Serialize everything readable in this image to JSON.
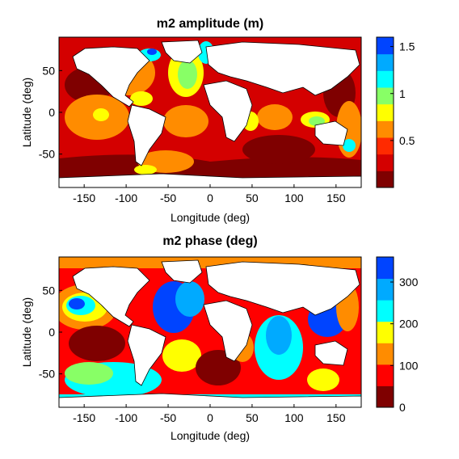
{
  "chart_data": [
    {
      "type": "heatmap",
      "title": "m2 amplitude (m)",
      "xlabel": "Longitude (deg)",
      "ylabel": "Latitude (deg)",
      "xlim": [
        -180,
        180
      ],
      "ylim": [
        -90,
        90
      ],
      "xticks": [
        -150,
        -100,
        -50,
        0,
        50,
        100,
        150
      ],
      "yticks": [
        50,
        0,
        -50
      ],
      "colorbar": {
        "range": [
          0,
          1.6
        ],
        "ticks": [
          "1.5",
          "1",
          "0.5"
        ],
        "tick_values": [
          1.5,
          1.0,
          0.5
        ],
        "colors": [
          "#7f0000",
          "#d40000",
          "#ff2a00",
          "#ff8c00",
          "#ffff00",
          "#88ff66",
          "#00ffff",
          "#00aaff",
          "#0044ff"
        ]
      }
    },
    {
      "type": "heatmap",
      "title": "m2 phase (deg)",
      "xlabel": "Longitude (deg)",
      "ylabel": "Latitude (deg)",
      "xlim": [
        -180,
        180
      ],
      "ylim": [
        -90,
        90
      ],
      "xticks": [
        -150,
        -100,
        -50,
        0,
        50,
        100,
        150
      ],
      "yticks": [
        50,
        0,
        -50
      ],
      "colorbar": {
        "range": [
          0,
          360
        ],
        "ticks": [
          "300",
          "200",
          "100",
          "0"
        ],
        "tick_values": [
          300,
          200,
          100,
          0
        ],
        "colors": [
          "#7f0000",
          "#ff0000",
          "#ff8c00",
          "#ffff00",
          "#00ffff",
          "#00aaff",
          "#0044ff"
        ]
      }
    }
  ]
}
